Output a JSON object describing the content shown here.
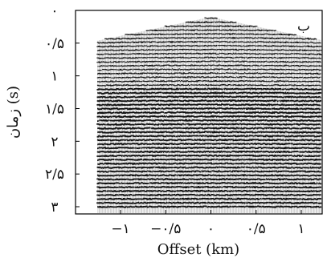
{
  "chart_data": {
    "type": "seismic-gather",
    "panel_label": "ب",
    "xlabel": "Offset (km)",
    "ylabel": "زمان (s)",
    "xlim": [
      -1.25,
      1.25
    ],
    "ylim": [
      0,
      3
    ],
    "x_ticks": [
      {
        "value": -1,
        "label": "−۱"
      },
      {
        "value": -0.5,
        "label": "−۰/۵"
      },
      {
        "value": 0,
        "label": "۰"
      },
      {
        "value": 0.5,
        "label": "۰/۵"
      },
      {
        "value": 1,
        "label": "۱"
      }
    ],
    "y_ticks": [
      {
        "value": 0,
        "label": "۰"
      },
      {
        "value": 0.5,
        "label": "۰/۵"
      },
      {
        "value": 1,
        "label": "۱"
      },
      {
        "value": 1.5,
        "label": "۱/۵"
      },
      {
        "value": 2,
        "label": "۲"
      },
      {
        "value": 2.5,
        "label": "۲/۵"
      },
      {
        "value": 3,
        "label": "۳"
      }
    ],
    "first_arrival": [
      {
        "offset": -1.25,
        "time": 0.46
      },
      {
        "offset": 0,
        "time": 0.1
      },
      {
        "offset": 1.25,
        "time": 0.46
      }
    ],
    "reflector_spacing_s": 0.06,
    "trace_spacing_km": 0.0125,
    "grid": false
  }
}
